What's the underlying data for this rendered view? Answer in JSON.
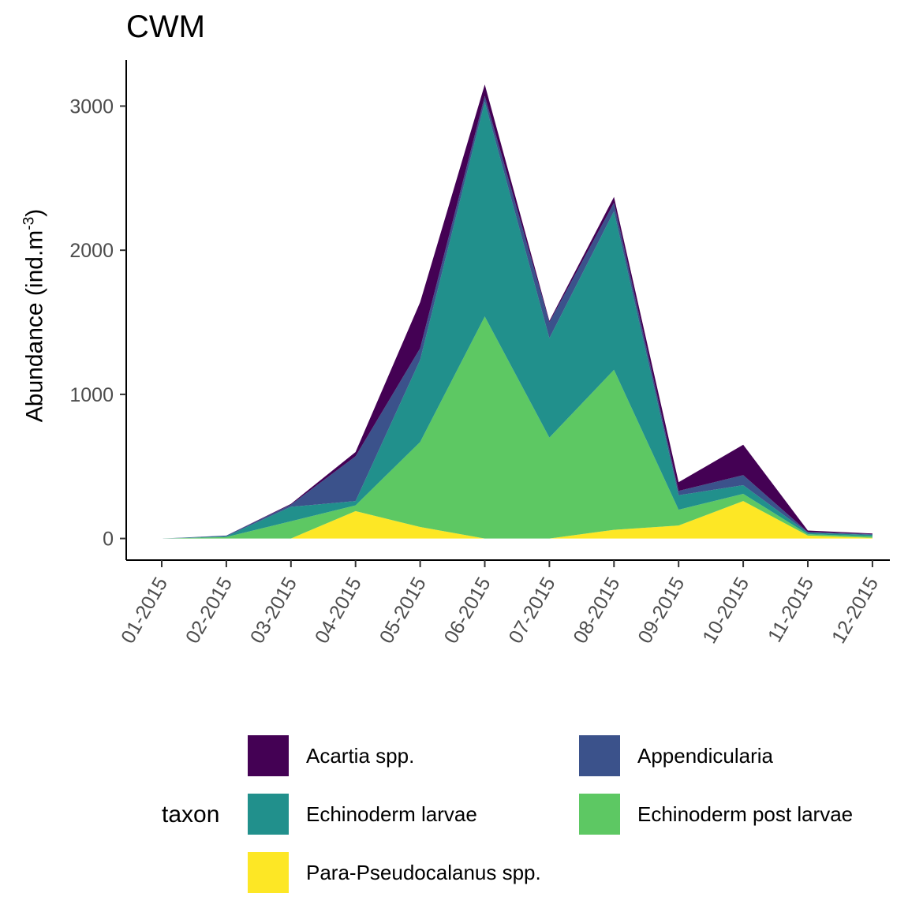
{
  "chart_data": {
    "type": "area",
    "stacked": true,
    "title": "CWM",
    "xlabel": "",
    "ylabel": "Abundance (ind.m",
    "ylabel_superscript": "-3",
    "ylabel_close": ")",
    "ylim": [
      -150,
      3320
    ],
    "yticks": [
      0,
      1000,
      2000,
      3000
    ],
    "categories": [
      "01-2015",
      "02-2015",
      "03-2015",
      "04-2015",
      "05-2015",
      "06-2015",
      "07-2015",
      "08-2015",
      "09-2015",
      "10-2015",
      "11-2015",
      "12-2015"
    ],
    "legend_title": "taxon",
    "series": [
      {
        "name": "Para-Pseudocalanus spp.",
        "color": "#FDE725",
        "values": [
          0,
          0,
          0,
          190,
          80,
          0,
          0,
          60,
          90,
          260,
          20,
          5
        ]
      },
      {
        "name": "Echinoderm post larvae",
        "color": "#5DC863",
        "values": [
          0,
          10,
          120,
          40,
          590,
          1540,
          700,
          1110,
          110,
          50,
          10,
          10
        ]
      },
      {
        "name": "Echinoderm larvae",
        "color": "#21908C",
        "values": [
          0,
          5,
          100,
          30,
          570,
          1490,
          690,
          1100,
          100,
          60,
          10,
          10
        ]
      },
      {
        "name": "Appendicularia",
        "color": "#3B528B",
        "values": [
          0,
          5,
          15,
          310,
          80,
          40,
          110,
          60,
          30,
          70,
          5,
          5
        ]
      },
      {
        "name": "Acartia spp.",
        "color": "#440154",
        "values": [
          0,
          0,
          5,
          30,
          320,
          80,
          10,
          40,
          60,
          210,
          10,
          5
        ]
      }
    ]
  }
}
